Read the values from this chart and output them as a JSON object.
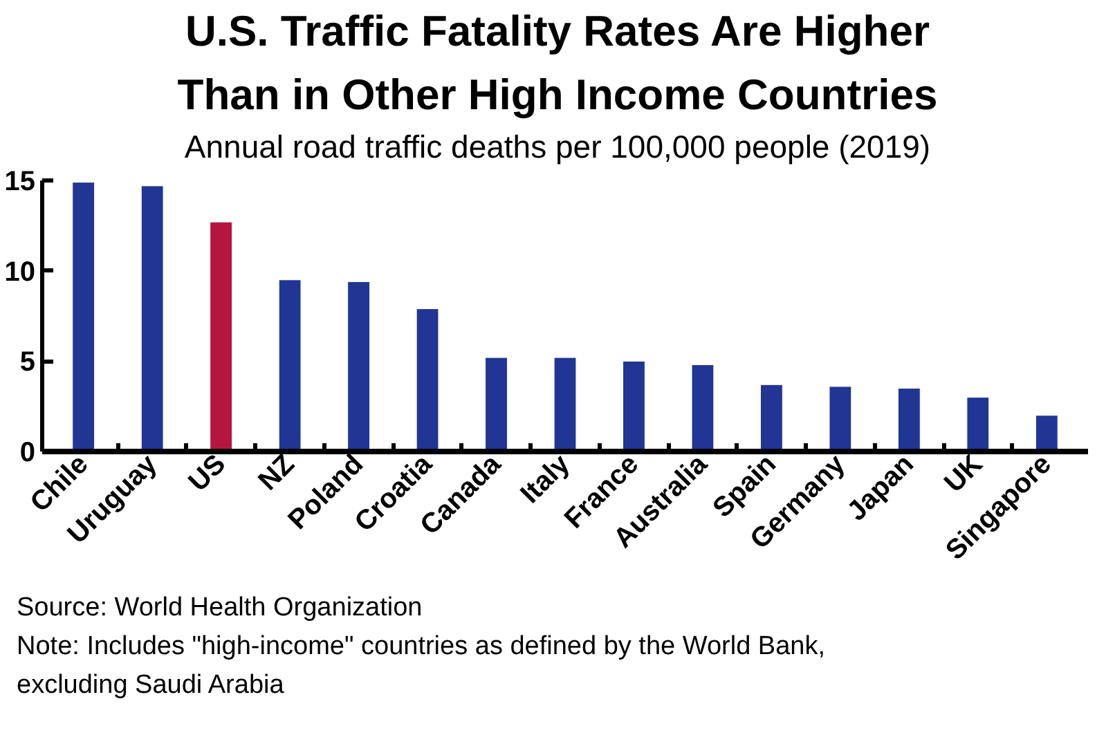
{
  "chart_data": {
    "type": "bar",
    "title": "U.S. Traffic Fatality Rates Are Higher\nThan in Other High Income Countries",
    "subtitle": "Annual road traffic deaths per 100,000 people (2019)",
    "categories": [
      "Chile",
      "Uruguay",
      "US",
      "NZ",
      "Poland",
      "Croatia",
      "Canada",
      "Italy",
      "France",
      "Australia",
      "Spain",
      "Germany",
      "Japan",
      "UK",
      "Singapore"
    ],
    "values": [
      14.9,
      14.7,
      12.7,
      9.5,
      9.4,
      7.9,
      5.2,
      5.2,
      5.0,
      4.8,
      3.7,
      3.6,
      3.5,
      3.0,
      2.0
    ],
    "colors": [
      "#203594",
      "#203594",
      "#b5163e",
      "#203594",
      "#203594",
      "#203594",
      "#203594",
      "#203594",
      "#203594",
      "#203594",
      "#203594",
      "#203594",
      "#203594",
      "#203594",
      "#203594"
    ],
    "ylim": [
      0,
      15
    ],
    "yticks": [
      0,
      5,
      10,
      15
    ],
    "grid": false,
    "annotations": [
      "Source: World Health Organization",
      "Note: Includes \"high-income\" countries as defined by the World Bank,\nexcluding Saudi Arabia"
    ]
  }
}
